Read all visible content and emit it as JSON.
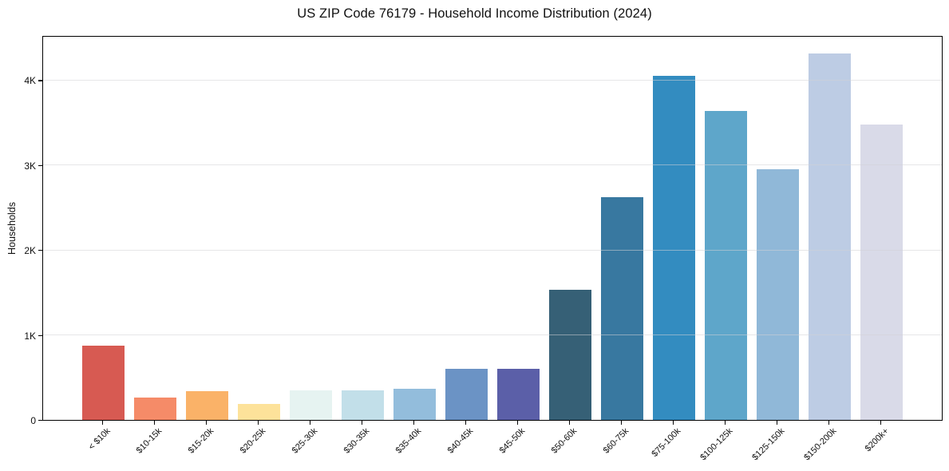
{
  "header": {
    "title": "US ZIP Code 76179 - Household Income Distribution (2024)"
  },
  "chart_data": {
    "type": "bar",
    "title": "US ZIP Code 76179 - Household Income Distribution (2024)",
    "xlabel": "",
    "ylabel": "Households",
    "categories": [
      "< $10k",
      "$10-15k",
      "$15-20k",
      "$20-25k",
      "$25-30k",
      "$30-35k",
      "$35-40k",
      "$40-45k",
      "$45-50k",
      "$50-60k",
      "$60-75k",
      "$75-100k",
      "$100-125k",
      "$125-150k",
      "$150-200k",
      "$200k+"
    ],
    "values": [
      870,
      265,
      335,
      185,
      350,
      350,
      365,
      600,
      600,
      1535,
      2620,
      4050,
      3640,
      2950,
      4315,
      3480
    ],
    "bar_colors": [
      "#d75a52",
      "#f58b68",
      "#fab268",
      "#fde29a",
      "#e6f3f1",
      "#c2dfe9",
      "#93bddc",
      "#6b93c5",
      "#5b5fa8",
      "#366076",
      "#3878a0",
      "#338cc0",
      "#5ea6ca",
      "#90b8d8",
      "#bdcce4",
      "#d9dae8"
    ],
    "ytick_labels": [
      "0",
      "1K",
      "2K",
      "3K",
      "4K"
    ],
    "ytick_values": [
      0,
      1000,
      2000,
      3000,
      4000
    ],
    "ylim": [
      0,
      4530
    ],
    "x_tick_rotation_deg": 45,
    "grid": "horizontal",
    "legend": "none",
    "background_color": "#ffffff",
    "spine_color": "#000000",
    "gridline_color": "#d2d2d6"
  }
}
